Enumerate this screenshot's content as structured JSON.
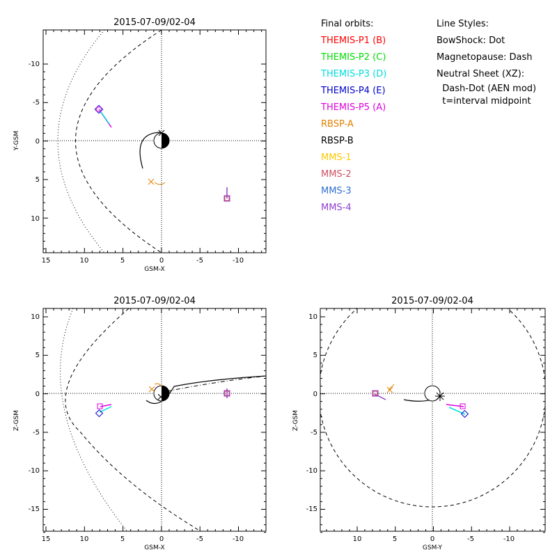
{
  "panels": [
    {
      "title": "2015-07-09/02-04",
      "xlabel": "GSM-X",
      "ylabel": "Y-GSM",
      "xticks": [
        "15",
        "10",
        "5",
        "0",
        "-5",
        "-10"
      ],
      "yticks": [
        "-10",
        "-5",
        "0",
        "5",
        "10"
      ]
    },
    {
      "title": "2015-07-09/02-04",
      "xlabel": "GSM-X",
      "ylabel": "Z-GSM",
      "xticks": [
        "15",
        "10",
        "5",
        "0",
        "-5",
        "-10"
      ],
      "yticks": [
        "10",
        "5",
        "0",
        "-5",
        "-10",
        "-15"
      ]
    },
    {
      "title": "2015-07-09/02-04",
      "xlabel": "GSM-Y",
      "ylabel": "Z-GSM",
      "xticks": [
        "10",
        "5",
        "0",
        "-5",
        "-10"
      ],
      "yticks": [
        "10",
        "5",
        "0",
        "-5",
        "-10",
        "-15"
      ]
    }
  ],
  "legend": {
    "heading": "Final orbits:",
    "items": [
      {
        "label": "THEMIS-P1 (B)",
        "color": "#ff0000"
      },
      {
        "label": "THEMIS-P2 (C)",
        "color": "#00dd00"
      },
      {
        "label": "THEMIS-P3 (D)",
        "color": "#00dddd"
      },
      {
        "label": "THEMIS-P4 (E)",
        "color": "#0000cc"
      },
      {
        "label": "THEMIS-P5 (A)",
        "color": "#dd00dd"
      },
      {
        "label": "RBSP-A",
        "color": "#e08000"
      },
      {
        "label": "RBSP-B",
        "color": "#000000"
      },
      {
        "label": "MMS-1",
        "color": "#ffc800"
      },
      {
        "label": "MMS-2",
        "color": "#d05060"
      },
      {
        "label": "MMS-3",
        "color": "#3070d0"
      },
      {
        "label": "MMS-4",
        "color": "#9040d0"
      }
    ]
  },
  "line_styles": {
    "heading": "Line Styles:",
    "items": [
      "BowShock: Dot",
      "Magnetopause: Dash",
      "Neutral Sheet (XZ):",
      "  Dash-Dot (AEN mod)",
      "  t=interval midpoint"
    ]
  }
}
